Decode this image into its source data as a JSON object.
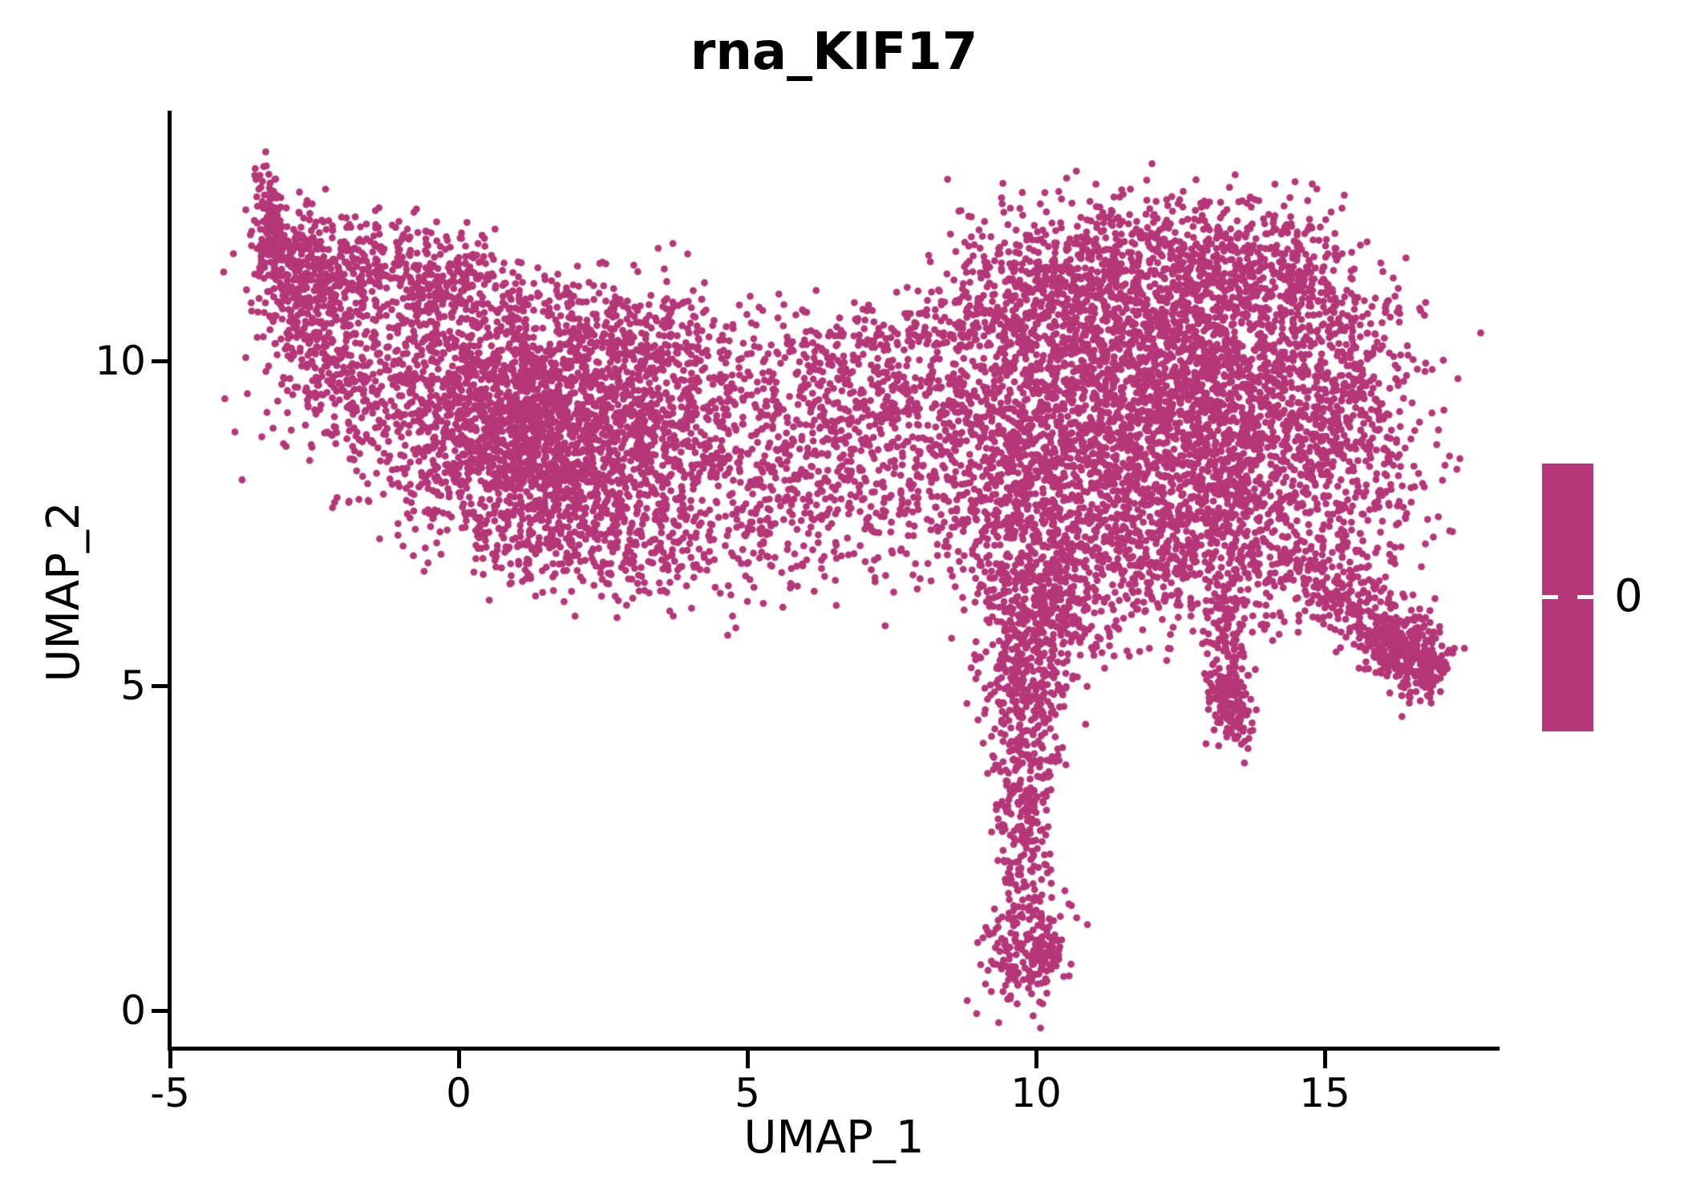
{
  "title": "rna_KIF17",
  "axes": {
    "x_label": "UMAP_1",
    "y_label": "UMAP_2"
  },
  "legend": {
    "label": "0"
  },
  "chart_data": {
    "type": "scatter",
    "title": "rna_KIF17",
    "xlabel": "UMAP_1",
    "ylabel": "UMAP_2",
    "xlim": [
      -5.0,
      18.0
    ],
    "ylim": [
      -0.58,
      13.86
    ],
    "x_ticks": [
      -5,
      0,
      5,
      10,
      15
    ],
    "x_tick_labels": [
      "-5",
      "0",
      "5",
      "10",
      "15"
    ],
    "y_ticks": [
      0,
      5,
      10
    ],
    "y_tick_labels": [
      "0",
      "5",
      "10"
    ],
    "grid": false,
    "point_color": "#B53778",
    "point_radius_px": 4.4,
    "n_points_approx": 12300,
    "feature_value_uniform": 0,
    "colorbar": {
      "position": "right",
      "color": "#B53778",
      "tick_values": [
        0
      ],
      "tick_labels": [
        "0"
      ],
      "tick_color": "#ffffff"
    },
    "seed": 42,
    "clusters": [
      {
        "name": "tip-streak",
        "cx": -3.25,
        "cy": 12.15,
        "sx": 0.1,
        "sy": 0.42,
        "rot": 8,
        "n": 130
      },
      {
        "name": "tip-fan",
        "cx": -2.95,
        "cy": 11.4,
        "sx": 0.3,
        "sy": 0.5,
        "rot": 25,
        "n": 170
      },
      {
        "name": "upper-left-band",
        "cx": -1.75,
        "cy": 11.5,
        "sx": 0.8,
        "sy": 0.45,
        "rot": -4,
        "n": 250
      },
      {
        "name": "left-edge-band",
        "cx": -2.4,
        "cy": 10.45,
        "sx": 0.45,
        "sy": 0.75,
        "rot": 22,
        "n": 240
      },
      {
        "name": "wing-core-left",
        "cx": 0.25,
        "cy": 9.45,
        "sx": 1.5,
        "sy": 0.95,
        "rot": -14,
        "n": 1250
      },
      {
        "name": "wing-core-dense",
        "cx": 1.7,
        "cy": 8.75,
        "sx": 1.15,
        "sy": 0.8,
        "rot": -14,
        "n": 1000
      },
      {
        "name": "wing-lower-fringe",
        "cx": 1.9,
        "cy": 7.45,
        "sx": 1.5,
        "sy": 0.5,
        "rot": -8,
        "n": 380
      },
      {
        "name": "wing-right-ext",
        "cx": 3.5,
        "cy": 9.2,
        "sx": 1.0,
        "sy": 0.9,
        "rot": -20,
        "n": 480
      },
      {
        "name": "wing-top-bump",
        "cx": 3.2,
        "cy": 10.3,
        "sx": 0.7,
        "sy": 0.35,
        "rot": -5,
        "n": 150
      },
      {
        "name": "wing-top-sparse",
        "cx": 0.9,
        "cy": 10.9,
        "sx": 1.4,
        "sy": 0.35,
        "rot": -8,
        "n": 150
      },
      {
        "name": "wing-top-clump",
        "cx": 0.0,
        "cy": 11.35,
        "sx": 0.45,
        "sy": 0.3,
        "rot": 0,
        "n": 90
      },
      {
        "name": "bridge",
        "cx": 5.8,
        "cy": 8.2,
        "sx": 0.9,
        "sy": 0.85,
        "rot": 0,
        "n": 330
      },
      {
        "name": "bridge-upper-sparse",
        "cx": 5.8,
        "cy": 9.7,
        "sx": 0.85,
        "sy": 0.55,
        "rot": 0,
        "n": 100
      },
      {
        "name": "bridge-right",
        "cx": 7.0,
        "cy": 8.6,
        "sx": 0.7,
        "sy": 0.9,
        "rot": 0,
        "n": 190
      },
      {
        "name": "bridge-top-arc",
        "cx": 6.6,
        "cy": 10.2,
        "sx": 0.6,
        "sy": 0.3,
        "rot": 12,
        "n": 80
      },
      {
        "name": "blob-left",
        "cx": 9.4,
        "cy": 8.7,
        "sx": 0.85,
        "sy": 1.15,
        "rot": 0,
        "n": 600
      },
      {
        "name": "blob-core-left",
        "cx": 11.3,
        "cy": 9.5,
        "sx": 1.5,
        "sy": 1.25,
        "rot": 0,
        "n": 1500
      },
      {
        "name": "blob-core-right",
        "cx": 13.3,
        "cy": 9.2,
        "sx": 1.4,
        "sy": 1.3,
        "rot": 0,
        "n": 1600
      },
      {
        "name": "blob-top-band",
        "cx": 12.3,
        "cy": 11.55,
        "sx": 1.45,
        "sy": 0.55,
        "rot": 0,
        "n": 520
      },
      {
        "name": "blob-top-left-shoulder",
        "cx": 10.3,
        "cy": 11.1,
        "sx": 0.75,
        "sy": 0.45,
        "rot": 20,
        "n": 160
      },
      {
        "name": "blob-top-right-shoulder",
        "cx": 14.7,
        "cy": 11.05,
        "sx": 0.75,
        "sy": 0.45,
        "rot": -25,
        "n": 170
      },
      {
        "name": "blob-top-left-arc",
        "cx": 9.0,
        "cy": 10.9,
        "sx": 0.7,
        "sy": 0.4,
        "rot": 25,
        "n": 90
      },
      {
        "name": "blob-bottom-band",
        "cx": 11.9,
        "cy": 7.1,
        "sx": 1.7,
        "sy": 0.65,
        "rot": 0,
        "n": 650
      },
      {
        "name": "blob-right-taper",
        "cx": 15.4,
        "cy": 8.9,
        "sx": 0.75,
        "sy": 1.0,
        "rot": 0,
        "n": 320
      },
      {
        "name": "blob-bottom-left",
        "cx": 10.3,
        "cy": 6.4,
        "sx": 0.6,
        "sy": 0.5,
        "rot": 0,
        "n": 180
      },
      {
        "name": "tail-funnel",
        "cx": 9.95,
        "cy": 5.6,
        "sx": 0.5,
        "sy": 0.55,
        "rot": 0,
        "n": 240
      },
      {
        "name": "tail-upper",
        "cx": 9.8,
        "cy": 4.3,
        "sx": 0.33,
        "sy": 0.75,
        "rot": 0,
        "n": 220
      },
      {
        "name": "tail-mid",
        "cx": 9.8,
        "cy": 2.7,
        "sx": 0.24,
        "sy": 0.65,
        "rot": 0,
        "n": 140
      },
      {
        "name": "tail-bulb",
        "cx": 9.85,
        "cy": 0.95,
        "sx": 0.38,
        "sy": 0.42,
        "rot": -10,
        "n": 210
      },
      {
        "name": "spike",
        "cx": 13.35,
        "cy": 5.5,
        "sx": 0.2,
        "sy": 0.7,
        "rot": 0,
        "n": 170
      },
      {
        "name": "spike-bottom",
        "cx": 13.4,
        "cy": 4.65,
        "sx": 0.17,
        "sy": 0.22,
        "rot": 0,
        "n": 80
      },
      {
        "name": "arm-stream",
        "cx": 15.45,
        "cy": 6.25,
        "sx": 0.75,
        "sy": 0.28,
        "rot": -28,
        "n": 230
      },
      {
        "name": "arm-clump",
        "cx": 16.3,
        "cy": 5.5,
        "sx": 0.42,
        "sy": 0.3,
        "rot": -25,
        "n": 280
      },
      {
        "name": "arm-tip",
        "cx": 16.7,
        "cy": 5.3,
        "sx": 0.18,
        "sy": 0.18,
        "rot": 0,
        "n": 60
      },
      {
        "name": "below-wing-sparse",
        "cx": 3.0,
        "cy": 6.9,
        "sx": 0.8,
        "sy": 0.3,
        "rot": 0,
        "n": 40
      },
      {
        "name": "mid-gap-sparse",
        "cx": 7.9,
        "cy": 9.7,
        "sx": 0.7,
        "sy": 0.8,
        "rot": 0,
        "n": 120
      }
    ]
  }
}
